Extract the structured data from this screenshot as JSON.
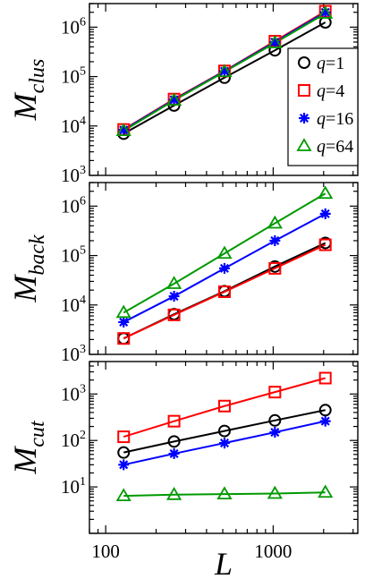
{
  "chart_data": [
    {
      "type": "line",
      "ylabel": "M",
      "ylabel_sub": "clus",
      "xscale": "log",
      "yscale": "log",
      "xlim": [
        80,
        3200
      ],
      "ylim": [
        1000,
        3000000
      ],
      "yticks": [
        {
          "base": "10",
          "exp": "3"
        },
        {
          "base": "10",
          "exp": "4"
        },
        {
          "base": "10",
          "exp": "5"
        },
        {
          "base": "10",
          "exp": "6"
        }
      ],
      "ytick_values": [
        1000,
        10000,
        100000,
        1000000
      ],
      "legend": {
        "placement": "right",
        "entries": [
          {
            "var": "q",
            "value": "=1"
          },
          {
            "var": "q",
            "value": "=4"
          },
          {
            "var": "q",
            "value": "=16"
          },
          {
            "var": "q",
            "value": "=64"
          }
        ]
      },
      "x": [
        128,
        256,
        512,
        1024,
        2048
      ],
      "series": [
        {
          "key": "q1",
          "color": "#000000",
          "marker": "circle",
          "values": [
            7000,
            26000,
            95000,
            340000,
            1250000
          ]
        },
        {
          "key": "q4",
          "color": "#ff0000",
          "marker": "square",
          "values": [
            8500,
            35000,
            130000,
            520000,
            2100000
          ]
        },
        {
          "key": "q16",
          "color": "#0000ff",
          "marker": "star",
          "values": [
            8300,
            34000,
            128000,
            500000,
            2000000
          ]
        },
        {
          "key": "q64",
          "color": "#009900",
          "marker": "triangle",
          "values": [
            8000,
            33000,
            125000,
            480000,
            1900000
          ]
        }
      ]
    },
    {
      "type": "line",
      "ylabel": "M",
      "ylabel_sub": "back",
      "xscale": "log",
      "yscale": "log",
      "xlim": [
        80,
        3200
      ],
      "ylim": [
        1000,
        3000000
      ],
      "yticks": [
        {
          "base": "10",
          "exp": "3"
        },
        {
          "base": "10",
          "exp": "4"
        },
        {
          "base": "10",
          "exp": "5"
        },
        {
          "base": "10",
          "exp": "6"
        }
      ],
      "ytick_values": [
        1000,
        10000,
        100000,
        1000000
      ],
      "x": [
        128,
        256,
        512,
        1024,
        2048
      ],
      "series": [
        {
          "key": "q1",
          "color": "#000000",
          "marker": "circle",
          "values": [
            2100,
            6500,
            19000,
            60000,
            180000
          ]
        },
        {
          "key": "q4",
          "color": "#ff0000",
          "marker": "square",
          "values": [
            2100,
            6300,
            18500,
            55000,
            165000
          ]
        },
        {
          "key": "q16",
          "color": "#0000ff",
          "marker": "star",
          "values": [
            4500,
            15000,
            55000,
            200000,
            700000
          ]
        },
        {
          "key": "q64",
          "color": "#009900",
          "marker": "triangle",
          "values": [
            7000,
            27000,
            110000,
            450000,
            1800000
          ]
        }
      ]
    },
    {
      "type": "line",
      "ylabel": "M",
      "ylabel_sub": "cut",
      "xlabel": "L",
      "xscale": "log",
      "yscale": "log",
      "xlim": [
        80,
        3200
      ],
      "ylim": [
        1,
        5000
      ],
      "yticks": [
        {
          "base": "10",
          "exp": "1"
        },
        {
          "base": "10",
          "exp": "2"
        },
        {
          "base": "10",
          "exp": "3"
        }
      ],
      "ytick_values": [
        10,
        100,
        1000
      ],
      "xticks": [
        "100",
        "1000"
      ],
      "xtick_values": [
        100,
        1000
      ],
      "x": [
        128,
        256,
        512,
        1024,
        2048
      ],
      "series": [
        {
          "key": "q1",
          "color": "#000000",
          "marker": "circle",
          "values": [
            55,
            95,
            160,
            270,
            450
          ]
        },
        {
          "key": "q4",
          "color": "#ff0000",
          "marker": "square",
          "values": [
            120,
            260,
            550,
            1100,
            2200
          ]
        },
        {
          "key": "q16",
          "color": "#0000ff",
          "marker": "star",
          "values": [
            30,
            52,
            88,
            150,
            260
          ]
        },
        {
          "key": "q64",
          "color": "#009900",
          "marker": "triangle",
          "values": [
            6.4,
            6.8,
            7.0,
            7.2,
            7.6
          ]
        }
      ]
    }
  ]
}
